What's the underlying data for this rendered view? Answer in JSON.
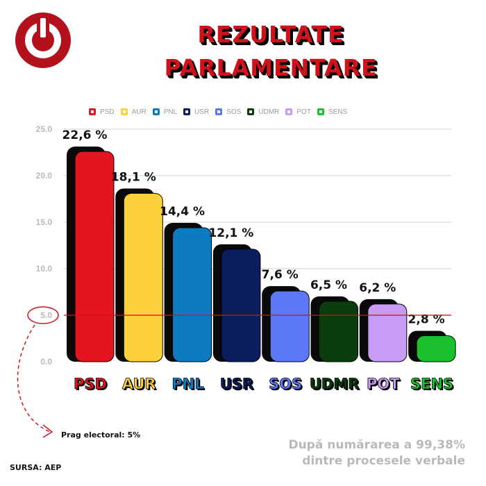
{
  "header": {
    "title_line1": "REZULTATE",
    "title_line2": "PARLAMENTARE",
    "logo_icon": "power-icon",
    "logo_color": "#b3121d"
  },
  "legend": [
    {
      "label": "PSD",
      "color": "#e41520"
    },
    {
      "label": "AUR",
      "color": "#fdd13a"
    },
    {
      "label": "PNL",
      "color": "#0d7bc0"
    },
    {
      "label": "USR",
      "color": "#0b1d5e"
    },
    {
      "label": "SOS",
      "color": "#5d78f6"
    },
    {
      "label": "UDMR",
      "color": "#0a3d0e"
    },
    {
      "label": "POT",
      "color": "#c89bf5"
    },
    {
      "label": "SENS",
      "color": "#1bc12c"
    }
  ],
  "chart_data": {
    "type": "bar",
    "categories": [
      "PSD",
      "AUR",
      "PNL",
      "USR",
      "SOS",
      "UDMR",
      "POT",
      "SENS"
    ],
    "values": [
      22.6,
      18.1,
      14.4,
      12.1,
      7.6,
      6.5,
      6.2,
      2.8
    ],
    "value_labels": [
      "22,6 %",
      "18,1 %",
      "14,4 %",
      "12,1 %",
      "7,6 %",
      "6,5 %",
      "6,2 %",
      "2,8 %"
    ],
    "colors": [
      "#e41520",
      "#fdd13a",
      "#0d7bc0",
      "#0b1d5e",
      "#5d78f6",
      "#0a3d0e",
      "#c89bf5",
      "#1bc12c"
    ],
    "yticks": [
      "0.0",
      "5.0",
      "10.0",
      "15.0",
      "20.0",
      "25.0"
    ],
    "ylim": [
      0,
      25
    ],
    "threshold": 5,
    "grid": true,
    "legend_position": "top"
  },
  "notes": {
    "threshold_label": "Prag electoral: 5%",
    "source": "SURSA: AEP",
    "count_line1": "După numărarea a 99,38%",
    "count_line2": "dintre procesele verbale"
  }
}
